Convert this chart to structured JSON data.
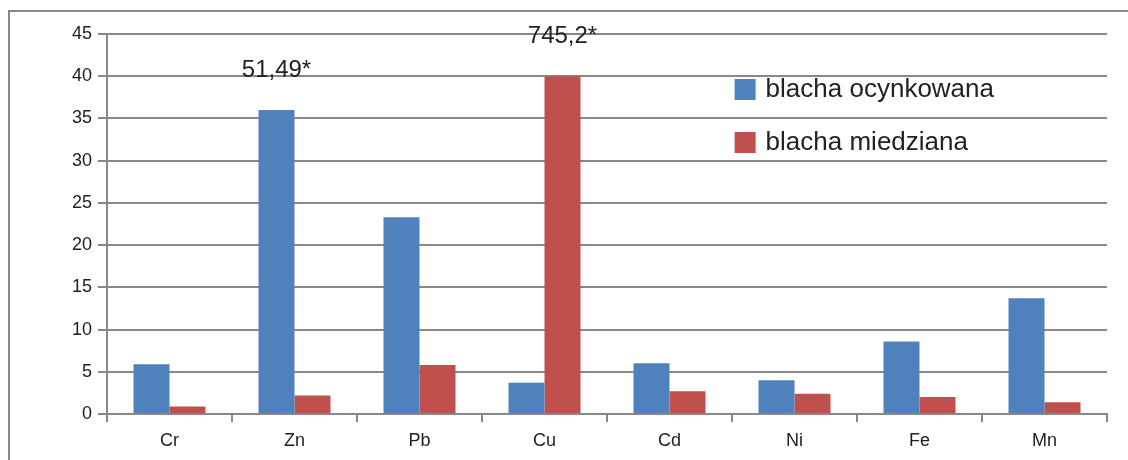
{
  "chart_data": {
    "type": "bar",
    "categories": [
      "Cr",
      "Zn",
      "Pb",
      "Cu",
      "Cd",
      "Ni",
      "Fe",
      "Mn"
    ],
    "series": [
      {
        "name": "blacha ocynkowana",
        "color": "#4f81bd",
        "values": [
          5.9,
          36,
          23.3,
          3.7,
          6.0,
          4.0,
          8.6,
          13.7
        ]
      },
      {
        "name": "blacha miedziana",
        "color": "#c0504d",
        "values": [
          0.9,
          2.2,
          5.8,
          40,
          2.7,
          2.4,
          2.0,
          1.4
        ]
      }
    ],
    "ylim": [
      0,
      45
    ],
    "yticks": [
      0,
      5,
      10,
      15,
      20,
      25,
      30,
      35,
      40,
      45
    ],
    "grid": "y",
    "legend": "top right",
    "annotations": [
      {
        "text": "51,49*",
        "x": "Zn",
        "y": 36
      },
      {
        "text": "745,2*",
        "x": "Cu",
        "y": 40
      }
    ]
  }
}
